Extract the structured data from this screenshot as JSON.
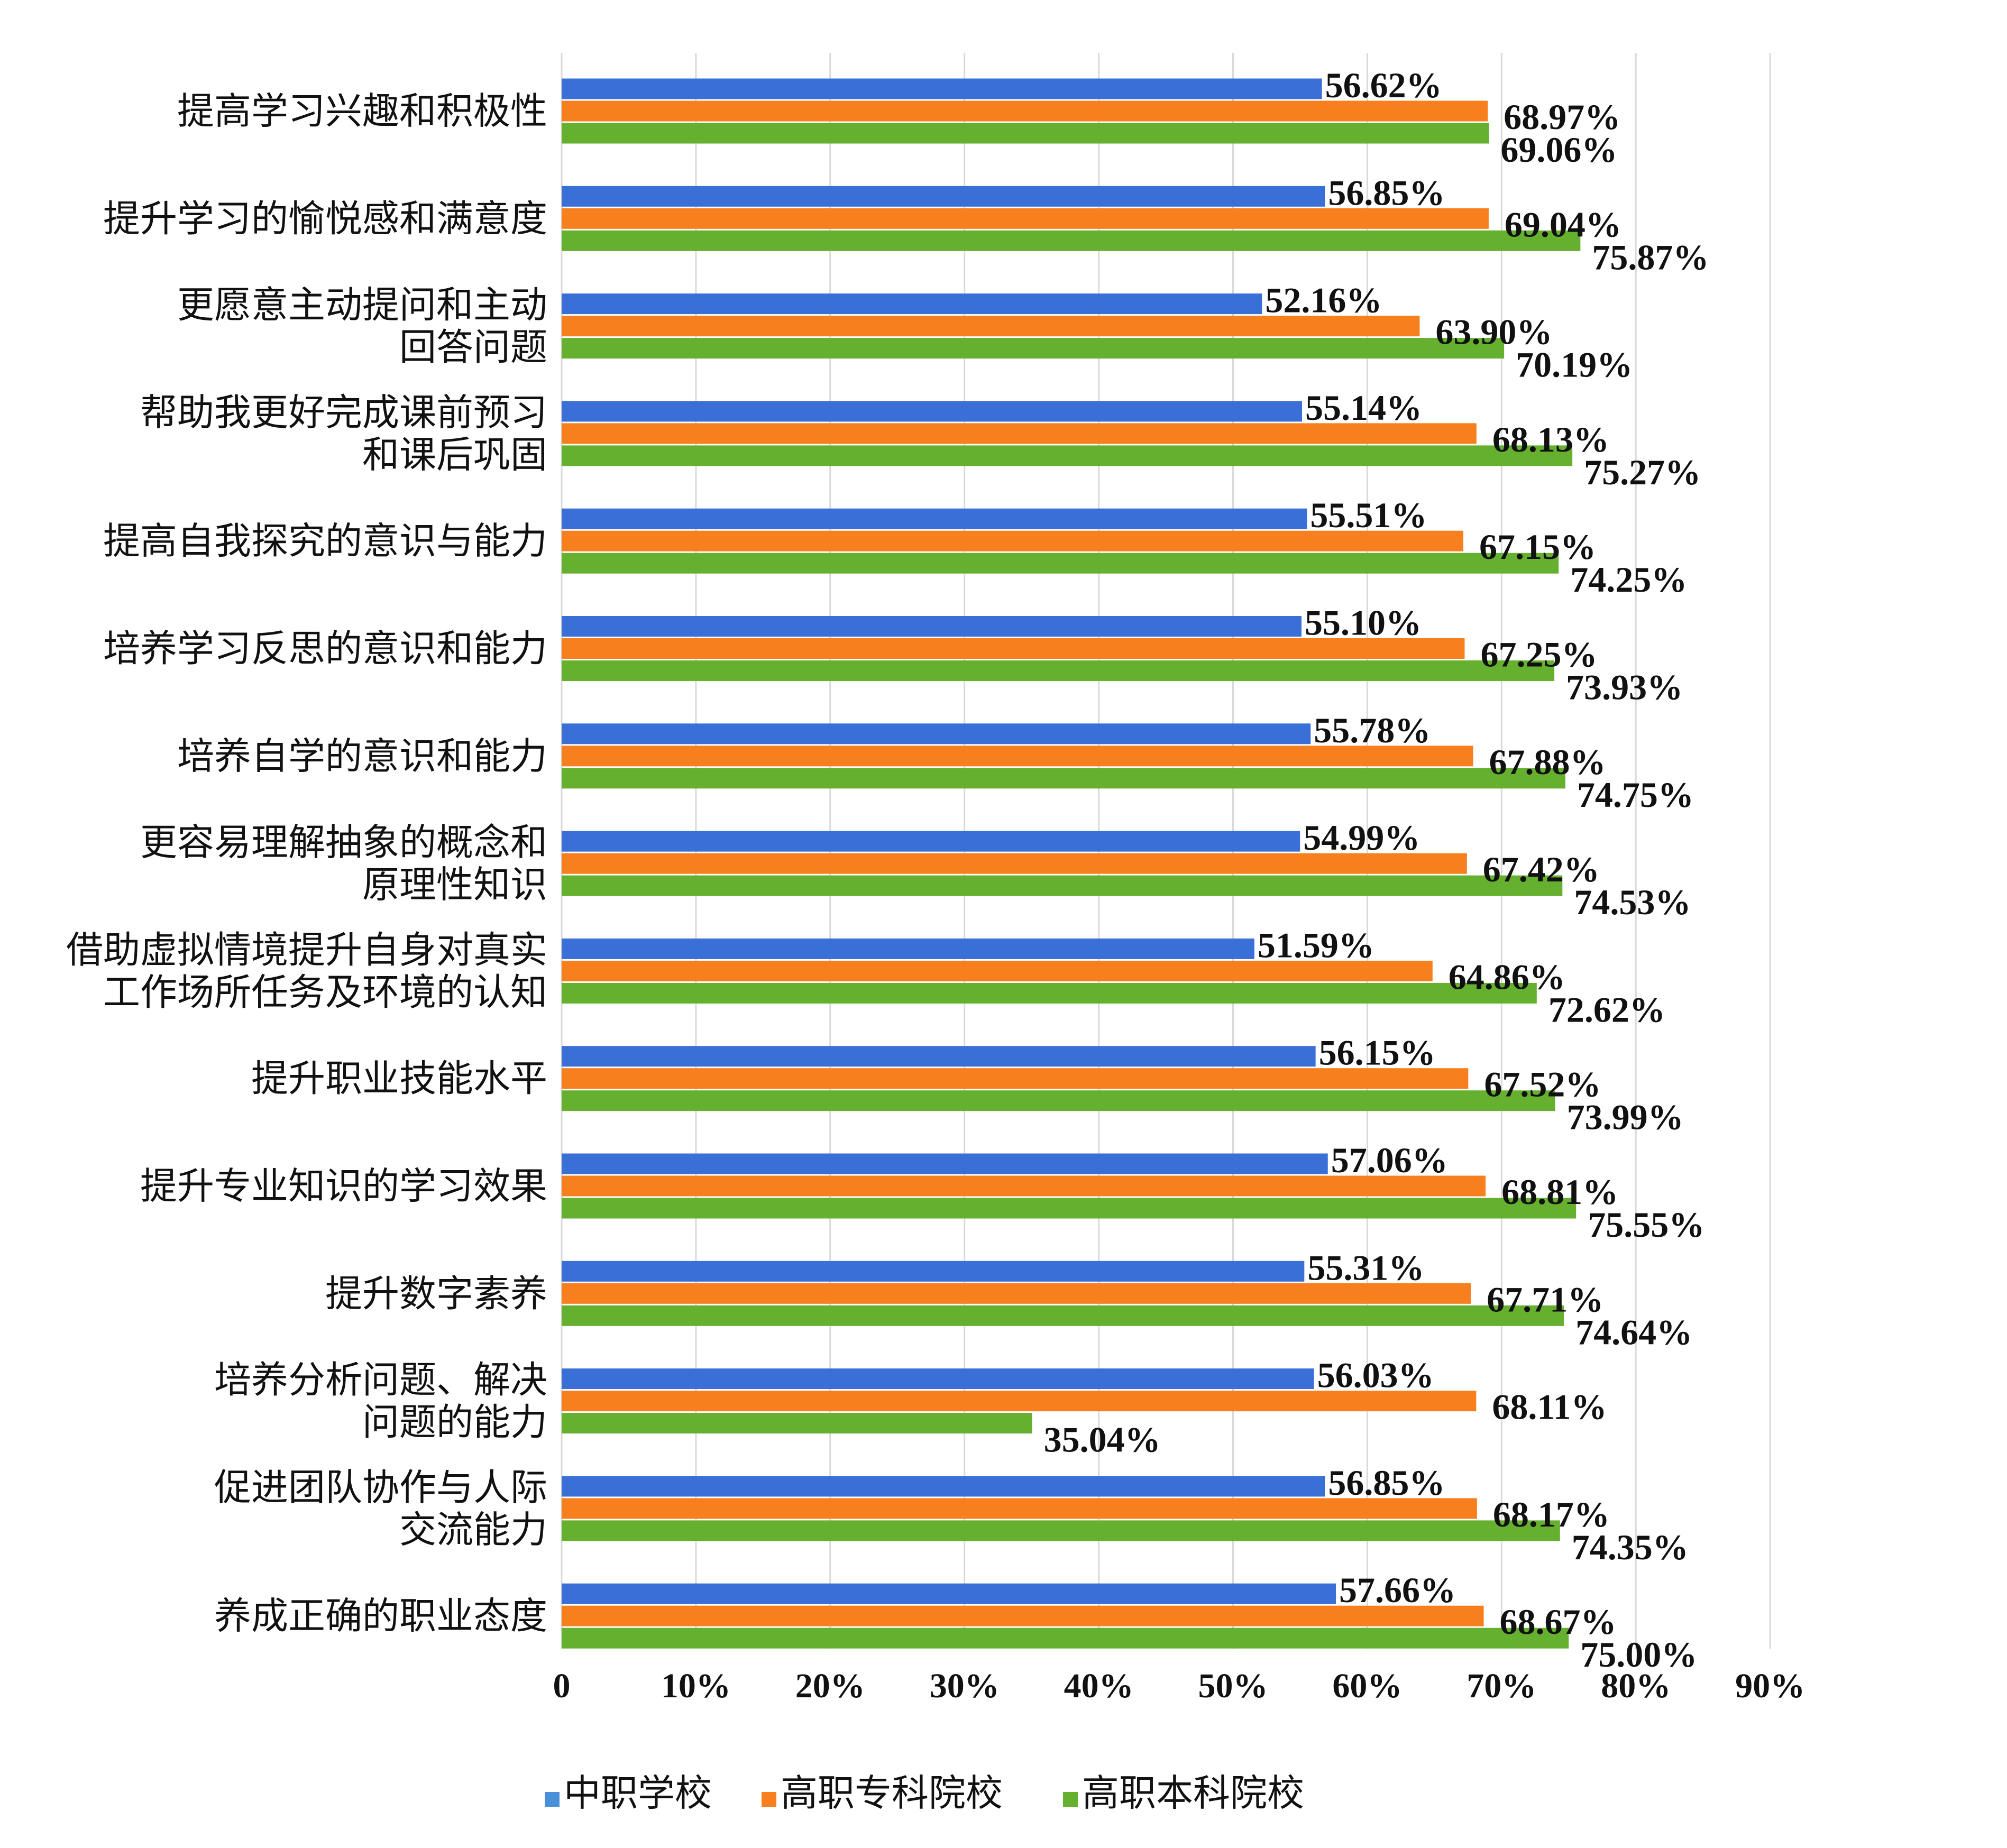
{
  "chart_data": {
    "type": "bar",
    "orientation": "horizontal",
    "categories": [
      [
        "提高学习兴趣和积极性"
      ],
      [
        "提升学习的愉悦感和满意度"
      ],
      [
        "更愿意主动提问和主动",
        "回答问题"
      ],
      [
        "帮助我更好完成课前预习",
        "和课后巩固"
      ],
      [
        "提高自我探究的意识与能力"
      ],
      [
        "培养学习反思的意识和能力"
      ],
      [
        "培养自学的意识和能力"
      ],
      [
        "更容易理解抽象的概念和",
        "原理性知识"
      ],
      [
        "借助虚拟情境提升自身对真实",
        "工作场所任务及环境的认知"
      ],
      [
        "提升职业技能水平"
      ],
      [
        "提升专业知识的学习效果"
      ],
      [
        "提升数字素养"
      ],
      [
        "培养分析问题、解决",
        "问题的能力"
      ],
      [
        "促进团队协作与人际",
        "交流能力"
      ],
      [
        "养成正确的职业态度"
      ]
    ],
    "series": [
      {
        "name": "中职学校",
        "color": "#3a6fd8",
        "values": [
          56.62,
          56.85,
          52.16,
          55.14,
          55.51,
          55.1,
          55.78,
          54.99,
          51.59,
          56.15,
          57.06,
          55.31,
          56.03,
          56.85,
          57.66
        ],
        "labels": [
          "56.62%",
          "56.85%",
          "52.16%",
          "55.14%",
          "55.51%",
          "55.10%",
          "55.78%",
          "54.99%",
          "51.59%",
          "56.15%",
          "57.06%",
          "55.31%",
          "56.03%",
          "56.85%",
          "57.66%"
        ]
      },
      {
        "name": "高职专科院校",
        "color": "#f77f1e",
        "values": [
          68.97,
          69.04,
          63.9,
          68.13,
          67.15,
          67.25,
          67.88,
          67.42,
          64.86,
          67.52,
          68.81,
          67.71,
          68.11,
          68.17,
          68.67
        ],
        "labels": [
          "68.97%",
          "69.04%",
          "63.90%",
          "68.13%",
          "67.15%",
          "67.25%",
          "67.88%",
          "67.42%",
          "64.86%",
          "67.52%",
          "68.81%",
          "67.71%",
          "68.11%",
          "68.17%",
          "68.67%"
        ]
      },
      {
        "name": "高职本科院校",
        "color": "#66b030",
        "values": [
          69.06,
          75.87,
          70.19,
          75.27,
          74.25,
          73.93,
          74.75,
          74.53,
          72.62,
          73.99,
          75.55,
          74.64,
          35.04,
          74.35,
          75.0
        ],
        "labels": [
          "69.06%",
          "75.87%",
          "70.19%",
          "75.27%",
          "74.25%",
          "73.93%",
          "74.75%",
          "74.53%",
          "72.62%",
          "73.99%",
          "75.55%",
          "74.64%",
          "35.04%",
          "74.35%",
          "75.00%"
        ]
      }
    ],
    "xlim": [
      0,
      90
    ],
    "xticks": [
      "0",
      "10%",
      "20%",
      "30%",
      "40%",
      "50%",
      "60%",
      "70%",
      "80%",
      "90%"
    ],
    "grid": "vertical",
    "legend": {
      "position": "bottom",
      "items": [
        "中职学校",
        "高职专科院校",
        "高职本科院校"
      ],
      "colors": [
        "#4a90d9",
        "#f77f1e",
        "#66b030"
      ]
    }
  }
}
